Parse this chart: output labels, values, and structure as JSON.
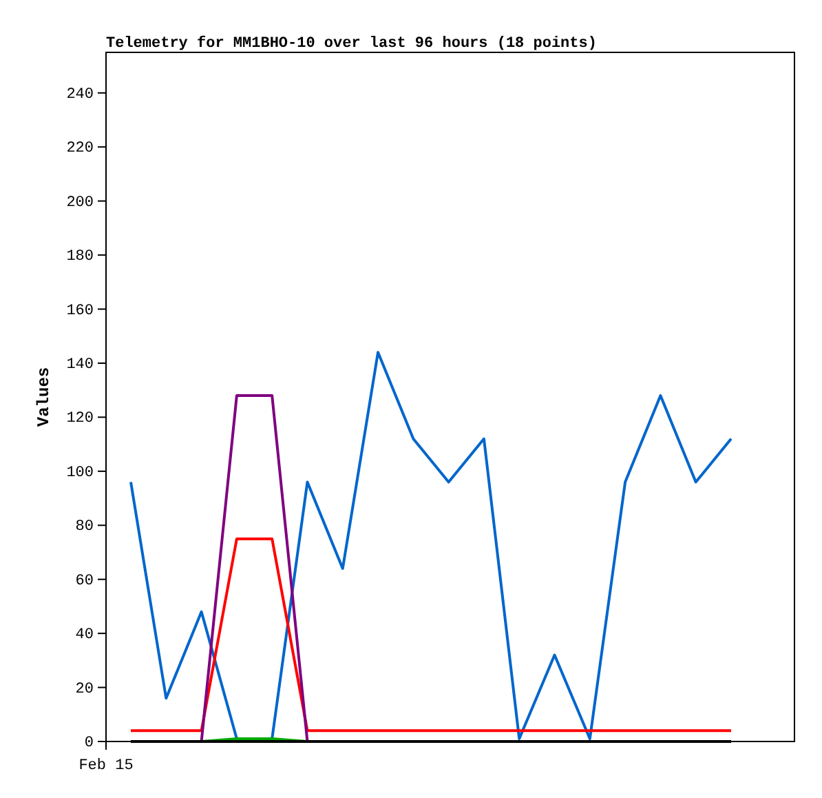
{
  "chart_data": {
    "type": "line",
    "title": "Telemetry for MM1BHO-10 over last 96 hours (18 points)",
    "ylabel": "Values",
    "categories": [
      null,
      null,
      null,
      null,
      null,
      null,
      null,
      null,
      null,
      null,
      null,
      null,
      null,
      null,
      null,
      null,
      null,
      null
    ],
    "series": [
      {
        "color": "#0066cc",
        "values": [
          96,
          16,
          48,
          1,
          1,
          96,
          64,
          144,
          112,
          96,
          112,
          1,
          32,
          1,
          96,
          128,
          96,
          112
        ]
      },
      {
        "color": "#ff0000",
        "values": [
          4,
          4,
          4,
          75,
          75,
          4,
          4,
          4,
          4,
          4,
          4,
          4,
          4,
          4,
          4,
          4,
          4,
          4
        ]
      },
      {
        "color": "#800080",
        "values": [
          null,
          null,
          0,
          128,
          128,
          0,
          null,
          null,
          null,
          null,
          null,
          null,
          null,
          null,
          null,
          null,
          null,
          null
        ]
      },
      {
        "color": "#00aa00",
        "values": [
          null,
          null,
          0,
          1,
          1,
          0,
          null,
          null,
          null,
          null,
          null,
          null,
          null,
          null,
          null,
          null,
          null,
          null
        ]
      },
      {
        "color": "#000000",
        "values": [
          0,
          0,
          0,
          0,
          0,
          0,
          0,
          0,
          0,
          0,
          0,
          0,
          0,
          0,
          0,
          0,
          0,
          0
        ]
      }
    ],
    "annotations": [
      "Feb 15"
    ],
    "ylim": [
      0,
      255
    ],
    "yticks": [
      0,
      20,
      40,
      60,
      80,
      100,
      120,
      140,
      160,
      180,
      200,
      220,
      240
    ],
    "grid": false,
    "marker": "none",
    "line_style": "solid"
  }
}
